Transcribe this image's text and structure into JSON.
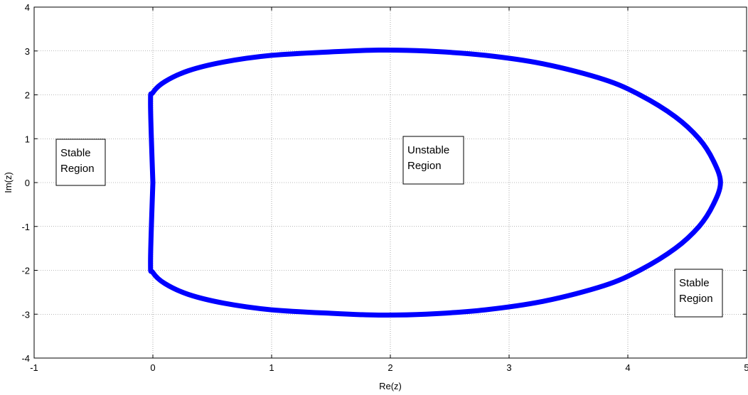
{
  "chart_data": {
    "type": "line",
    "title": "",
    "xlabel": "Re(z)",
    "ylabel": "Im(z)",
    "xlim": [
      -1,
      5
    ],
    "ylim": [
      -4,
      4
    ],
    "xticks": [
      "-1",
      "0",
      "1",
      "2",
      "3",
      "4",
      "5"
    ],
    "yticks": [
      "-4",
      "-3",
      "-2",
      "-1",
      "0",
      "1",
      "2",
      "3",
      "4"
    ],
    "grid": true,
    "series": [
      {
        "color": "#0000ff",
        "x": [
          0.0,
          -0.02,
          0.0,
          0.1,
          0.3,
          0.6,
          1.0,
          1.5,
          1.9,
          2.3,
          2.8,
          3.3,
          3.8,
          4.1,
          4.4,
          4.6,
          4.72,
          4.78,
          4.72,
          4.6,
          4.4,
          4.1,
          3.8,
          3.3,
          2.8,
          2.3,
          1.9,
          1.5,
          1.0,
          0.6,
          0.3,
          0.1,
          0.0,
          -0.02,
          0.0
        ],
        "y": [
          0.0,
          1.8,
          2.05,
          2.3,
          2.55,
          2.75,
          2.9,
          2.98,
          3.02,
          3.0,
          2.9,
          2.7,
          2.35,
          2.0,
          1.5,
          1.0,
          0.5,
          0.0,
          -0.5,
          -1.0,
          -1.5,
          -2.0,
          -2.35,
          -2.7,
          -2.9,
          -3.0,
          -3.02,
          -2.98,
          -2.9,
          -2.75,
          -2.55,
          -2.3,
          -2.05,
          -1.8,
          0.0
        ]
      }
    ],
    "annotations": [
      {
        "lines": [
          "Stable",
          "Region"
        ]
      },
      {
        "lines": [
          "Unstable",
          "Region"
        ]
      },
      {
        "lines": [
          "Stable",
          "Region"
        ]
      }
    ]
  }
}
